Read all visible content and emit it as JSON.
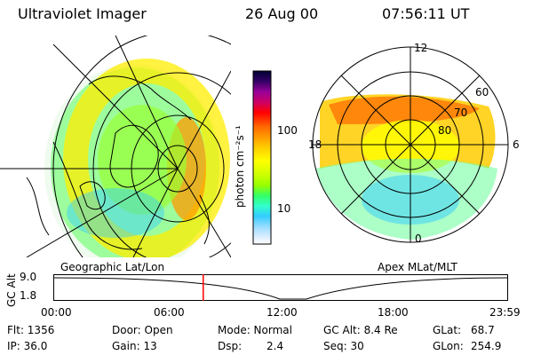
{
  "header": {
    "title": "Ultraviolet Imager",
    "date": "26 Aug 00",
    "time": "07:56:11 UT"
  },
  "colorbar": {
    "unit_label": "photon cm⁻²s⁻¹",
    "ticks": [
      "100",
      "10"
    ],
    "colors": [
      "#000033",
      "#330066",
      "#660099",
      "#990099",
      "#cc0066",
      "#ff0000",
      "#ff6600",
      "#ff9900",
      "#ffcc00",
      "#ffff00",
      "#ccff00",
      "#99ff00",
      "#66ff33",
      "#33ff99",
      "#33ccff",
      "#99ddff",
      "#ddeeff",
      "#ffffff"
    ]
  },
  "left_map": {
    "label": "Geographic Lat/Lon"
  },
  "right_map": {
    "label": "Apex MLat/MLT",
    "mlt_labels": {
      "top": "12",
      "left": "18",
      "right": "6",
      "bottom": "0"
    },
    "lat_labels": [
      "60",
      "70",
      "80"
    ]
  },
  "timeline": {
    "axis_label": "GC Alt",
    "y_ticks": [
      "9.0",
      "1.8"
    ],
    "x_ticks": [
      "00:00",
      "06:00",
      "12:00",
      "18:00",
      "23:59"
    ],
    "current_time_fraction": 0.329
  },
  "info": {
    "flt": "Flt: 1356",
    "ip": "IP: 36.0",
    "door": "Door: Open",
    "gain": "Gain: 13",
    "mode": "Mode: Normal",
    "dsp_label": "Dsp:",
    "dsp_value": "2.4",
    "gc_alt": "GC Alt: 8.4 Re",
    "seq": "Seq: 30",
    "glat_label": "GLat:",
    "glat_value": "68.7",
    "glon_label": "GLon:",
    "glon_value": "254.9"
  }
}
